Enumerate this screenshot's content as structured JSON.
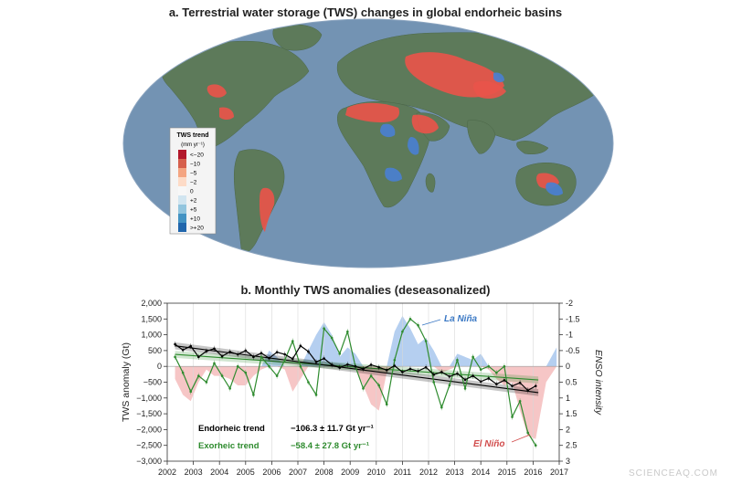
{
  "figure": {
    "panel_a_title": "a. Terrestrial water storage (TWS) changes in global endorheic basins",
    "panel_b_title": "b. Monthly TWS anomalies (deseasonalized)",
    "watermark": "SCIENCEAQ.COM"
  },
  "map_legend": {
    "title": "TWS trend",
    "unit": "(mm yr⁻¹)",
    "labels": [
      "<−20",
      "−10",
      "−5",
      "−2",
      "0",
      "+2",
      "+5",
      "+10",
      ">+20"
    ],
    "colors": [
      "#b2182b",
      "#d6604d",
      "#f4a582",
      "#fddbc7",
      "#f7f7f7",
      "#d1e5f0",
      "#92c5de",
      "#4393c3",
      "#2166ac"
    ]
  },
  "colors": {
    "ocean": "#7393b3",
    "land": "#5d7a5a",
    "loss": "#e8544a",
    "gain": "#4a7fd0",
    "endorheic": "#000000",
    "exorheic": "#2e8b2e",
    "la_nina_fill": "#b5cff0",
    "el_nino_fill": "#f6c6c6"
  },
  "chart_data": {
    "type": "line",
    "x_label": "",
    "y_label": "TWS anomaly (Gt)",
    "y2_label": "ENSO intensity",
    "xlim": [
      2002,
      2017
    ],
    "ylim": [
      -3000,
      2000
    ],
    "y2lim": [
      3,
      -2
    ],
    "x_ticks": [
      "2002",
      "2003",
      "2004",
      "2005",
      "2006",
      "2007",
      "2008",
      "2009",
      "2010",
      "2011",
      "2012",
      "2013",
      "2014",
      "2015",
      "2016",
      "2017"
    ],
    "y_ticks": [
      "2,000",
      "1,500",
      "1,000",
      "500",
      "0",
      "−500",
      "−1,000",
      "−1,500",
      "−2,000",
      "−2,500",
      "−3,000"
    ],
    "y2_ticks": [
      "-2",
      "-1.5",
      "-1",
      "-0.5",
      "0",
      "0.5",
      "1",
      "1.5",
      "2",
      "2.5",
      "3"
    ],
    "annotations": {
      "la_nina": "La Niña",
      "el_nino": "El Niño"
    },
    "trends": [
      {
        "label": "Endorheic trend",
        "value": "−106.3 ± 11.7 Gt yr⁻¹"
      },
      {
        "label": "Exorheic trend",
        "value": "−58.4 ± 27.8 Gt yr⁻¹"
      }
    ],
    "endorheic_trend_line": {
      "x": [
        2002.3,
        2016.2
      ],
      "y": [
        650,
        -830
      ]
    },
    "exorheic_trend_line": {
      "x": [
        2002.3,
        2016.2
      ],
      "y": [
        380,
        -430
      ]
    },
    "series": [
      {
        "name": "Endorheic",
        "x": [
          2002.3,
          2002.6,
          2002.9,
          2003.2,
          2003.5,
          2003.8,
          2004.1,
          2004.4,
          2004.7,
          2005.0,
          2005.3,
          2005.6,
          2005.9,
          2006.2,
          2006.5,
          2006.8,
          2007.1,
          2007.4,
          2007.7,
          2008.0,
          2008.3,
          2008.6,
          2008.9,
          2009.2,
          2009.5,
          2009.8,
          2010.1,
          2010.4,
          2010.7,
          2011.0,
          2011.3,
          2011.6,
          2011.9,
          2012.2,
          2012.5,
          2012.8,
          2013.1,
          2013.4,
          2013.7,
          2014.0,
          2014.3,
          2014.6,
          2014.9,
          2015.2,
          2015.5,
          2015.8,
          2016.1
        ],
        "y": [
          700,
          520,
          640,
          300,
          480,
          560,
          320,
          460,
          380,
          500,
          300,
          420,
          260,
          450,
          380,
          240,
          650,
          470,
          140,
          250,
          50,
          -40,
          60,
          0,
          -80,
          50,
          -30,
          -120,
          20,
          -180,
          -80,
          -150,
          -30,
          -260,
          -180,
          -320,
          -230,
          -420,
          -300,
          -480,
          -380,
          -560,
          -440,
          -620,
          -520,
          -760,
          -620
        ]
      },
      {
        "name": "Exorheic",
        "x": [
          2002.3,
          2002.6,
          2002.9,
          2003.2,
          2003.5,
          2003.8,
          2004.1,
          2004.4,
          2004.7,
          2005.0,
          2005.3,
          2005.6,
          2005.9,
          2006.2,
          2006.5,
          2006.8,
          2007.1,
          2007.4,
          2007.7,
          2008.0,
          2008.3,
          2008.6,
          2008.9,
          2009.2,
          2009.5,
          2009.8,
          2010.1,
          2010.4,
          2010.7,
          2011.0,
          2011.3,
          2011.6,
          2011.9,
          2012.2,
          2012.5,
          2012.8,
          2013.1,
          2013.4,
          2013.7,
          2014.0,
          2014.3,
          2014.6,
          2014.9,
          2015.2,
          2015.5,
          2015.8,
          2016.1
        ],
        "y": [
          300,
          -200,
          -800,
          -300,
          -500,
          100,
          -300,
          -700,
          0,
          -200,
          -900,
          300,
          0,
          -300,
          200,
          800,
          0,
          -500,
          -900,
          1200,
          900,
          400,
          1100,
          0,
          -700,
          -300,
          -600,
          -1200,
          200,
          1100,
          1500,
          1300,
          800,
          -500,
          -1300,
          -600,
          200,
          -700,
          300,
          -100,
          0,
          -200,
          0,
          -1600,
          -1100,
          -2100,
          -2500
        ]
      },
      {
        "name": "ENSO",
        "x": [
          2002.3,
          2002.6,
          2002.9,
          2003.2,
          2003.5,
          2003.8,
          2004.1,
          2004.4,
          2004.7,
          2005.0,
          2005.3,
          2005.6,
          2005.9,
          2006.2,
          2006.5,
          2006.8,
          2007.1,
          2007.4,
          2007.7,
          2008.0,
          2008.3,
          2008.6,
          2008.9,
          2009.2,
          2009.5,
          2009.8,
          2010.1,
          2010.4,
          2010.7,
          2011.0,
          2011.3,
          2011.6,
          2011.9,
          2012.2,
          2012.5,
          2012.8,
          2013.1,
          2013.4,
          2013.7,
          2014.0,
          2014.3,
          2014.6,
          2014.9,
          2015.2,
          2015.5,
          2015.8,
          2016.1,
          2016.5,
          2016.9
        ],
        "y": [
          0.4,
          0.9,
          1.1,
          0.5,
          0.1,
          0.3,
          0.3,
          0.4,
          0.6,
          0.6,
          0.3,
          0.1,
          -0.5,
          -0.3,
          0.1,
          0.8,
          0.4,
          -0.5,
          -1.0,
          -1.4,
          -1.0,
          -0.3,
          -0.6,
          -0.4,
          0.6,
          1.2,
          1.4,
          0.2,
          -1.1,
          -1.6,
          -1.2,
          -0.7,
          -0.9,
          -0.5,
          0.2,
          0.1,
          -0.4,
          -0.3,
          -0.2,
          -0.4,
          0.1,
          0.4,
          0.6,
          0.5,
          1.4,
          2.2,
          2.3,
          0.5,
          -0.6
        ]
      }
    ]
  }
}
